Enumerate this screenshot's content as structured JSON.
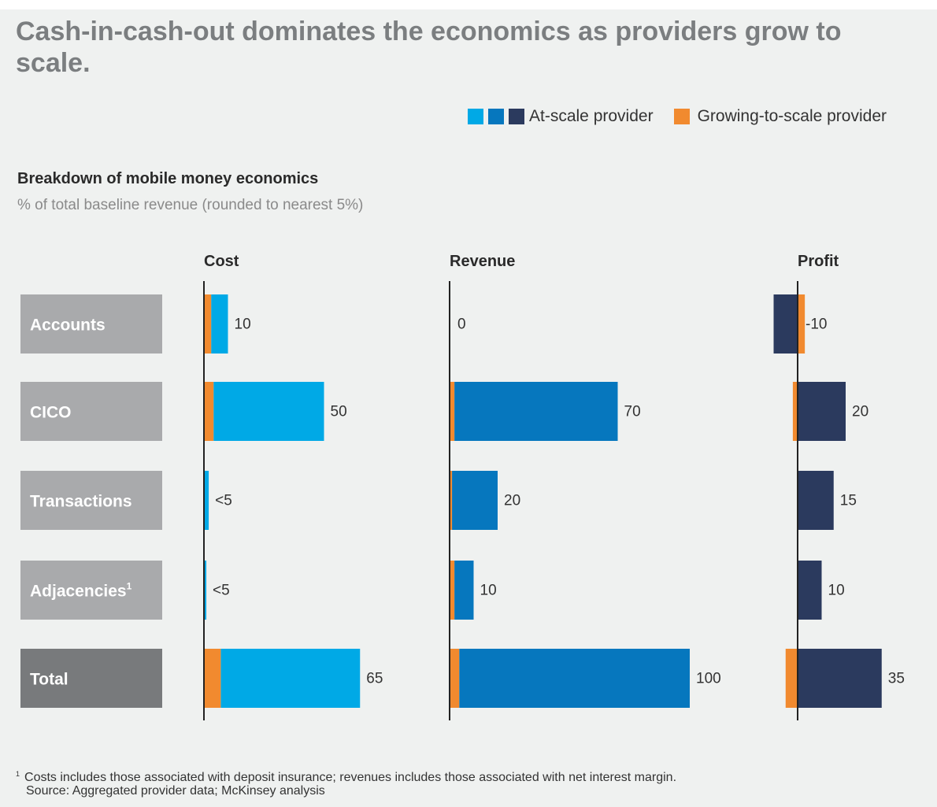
{
  "title": "Cash-in-cash-out dominates the economics as providers grow to scale.",
  "legend": {
    "at_scale_label": "At-scale provider",
    "growing_label": "Growing-to-scale provider",
    "at_scale_colors": [
      "#00a9e6",
      "#0677be",
      "#2b3a5e"
    ],
    "growing_color": "#f18a2f"
  },
  "subhead": "Breakdown of mobile money economics",
  "unit_note": "% of total baseline revenue (rounded to nearest 5%)",
  "footnote_marker": "1",
  "footnote": "Costs includes those associated with deposit insurance; revenues includes those associated with net interest margin.",
  "source": "Source: Aggregated provider data; McKinsey analysis",
  "chart_data": {
    "type": "bar",
    "orientation": "horizontal",
    "categories": [
      {
        "label": "Accounts",
        "footnote": ""
      },
      {
        "label": "CICO",
        "footnote": ""
      },
      {
        "label": "Transactions",
        "footnote": ""
      },
      {
        "label": "Adjacencies",
        "footnote": "1"
      },
      {
        "label": "Total",
        "footnote": ""
      }
    ],
    "panels": [
      {
        "name": "Cost",
        "color": "#00a9e6",
        "values": [
          10,
          50,
          2,
          1,
          65
        ],
        "labels": [
          "10",
          "50",
          "<5",
          "<5",
          "65"
        ],
        "growing_values": [
          3,
          4,
          0,
          0,
          7
        ]
      },
      {
        "name": "Revenue",
        "color": "#0677be",
        "values": [
          0,
          70,
          20,
          10,
          100
        ],
        "labels": [
          "0",
          "70",
          "20",
          "10",
          "100"
        ],
        "growing_values": [
          0,
          2,
          1,
          2,
          4
        ]
      },
      {
        "name": "Profit",
        "color": "#2b3a5e",
        "values": [
          -10,
          20,
          15,
          10,
          35
        ],
        "labels": [
          "-10",
          "20",
          "15",
          "10",
          "35"
        ],
        "growing_values": [
          3,
          -2,
          0,
          0,
          -5
        ]
      }
    ],
    "category_box_colors": [
      "#a9aaac",
      "#a9aaac",
      "#a9aaac",
      "#a9aaac",
      "#787a7c"
    ]
  }
}
